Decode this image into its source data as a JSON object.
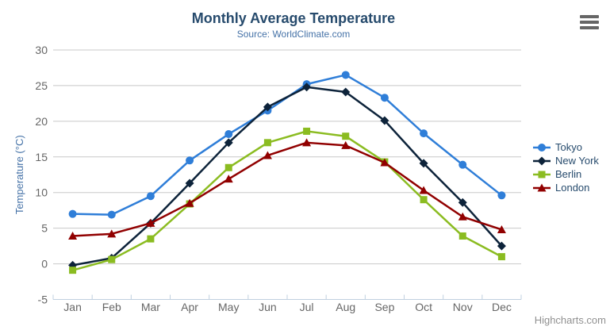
{
  "window": {
    "context_menu_icon": "hamburger-icon"
  },
  "credits": "Highcharts.com",
  "colors": {
    "title": "#274b6d",
    "subtitle": "#4572a7",
    "axis_label": "#666666",
    "y_axis_title": "#4572a7",
    "grid_line": "#c8c8c8",
    "axis_line": "#c0d0e0",
    "legend_text": "#274b6d",
    "credits_text": "#909090"
  },
  "chart_data": {
    "type": "line",
    "title": "Monthly Average Temperature",
    "subtitle": "Source: WorldClimate.com",
    "xlabel": "",
    "ylabel": "Temperature (°C)",
    "categories": [
      "Jan",
      "Feb",
      "Mar",
      "Apr",
      "May",
      "Jun",
      "Jul",
      "Aug",
      "Sep",
      "Oct",
      "Nov",
      "Dec"
    ],
    "yticks": [
      -5,
      0,
      5,
      10,
      15,
      20,
      25,
      30
    ],
    "ylim": [
      -5,
      30
    ],
    "grid": true,
    "legend_position": "right",
    "series": [
      {
        "name": "Tokyo",
        "color": "#2f7ed8",
        "marker": "circle",
        "values": [
          7.0,
          6.9,
          9.5,
          14.5,
          18.2,
          21.5,
          25.2,
          26.5,
          23.3,
          18.3,
          13.9,
          9.6
        ]
      },
      {
        "name": "New York",
        "color": "#0d233a",
        "marker": "diamond",
        "values": [
          -0.2,
          0.8,
          5.7,
          11.3,
          17.0,
          22.0,
          24.8,
          24.1,
          20.1,
          14.1,
          8.6,
          2.5
        ]
      },
      {
        "name": "Berlin",
        "color": "#8bbc21",
        "marker": "square",
        "values": [
          -0.9,
          0.6,
          3.5,
          8.4,
          13.5,
          17.0,
          18.6,
          17.9,
          14.3,
          9.0,
          3.9,
          1.0
        ]
      },
      {
        "name": "London",
        "color": "#910000",
        "marker": "triangle",
        "values": [
          3.9,
          4.2,
          5.7,
          8.5,
          11.9,
          15.2,
          17.0,
          16.6,
          14.2,
          10.3,
          6.6,
          4.8
        ]
      }
    ]
  }
}
